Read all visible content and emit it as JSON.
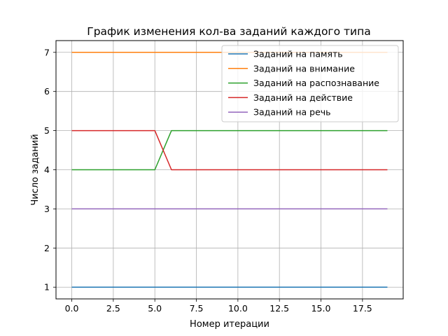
{
  "chart_data": {
    "type": "line",
    "title": "График изменения кол-ва заданий каждого типа",
    "xlabel": "Номер итерации",
    "ylabel": "Число заданий",
    "xlim": [
      -0.95,
      19.95
    ],
    "ylim": [
      0.7,
      7.3
    ],
    "grid": true,
    "legend_position": "top-right",
    "x_ticks": [
      0.0,
      2.5,
      5.0,
      7.5,
      10.0,
      12.5,
      15.0,
      17.5
    ],
    "x_tick_labels": [
      "0.0",
      "2.5",
      "5.0",
      "7.5",
      "10.0",
      "12.5",
      "15.0",
      "17.5"
    ],
    "y_ticks": [
      1,
      2,
      3,
      4,
      5,
      6,
      7
    ],
    "y_tick_labels": [
      "1",
      "2",
      "3",
      "4",
      "5",
      "6",
      "7"
    ],
    "x": [
      0,
      1,
      2,
      3,
      4,
      5,
      6,
      7,
      8,
      9,
      10,
      11,
      12,
      13,
      14,
      15,
      16,
      17,
      18,
      19
    ],
    "series": [
      {
        "name": "Заданий на память",
        "color": "#1f77b4",
        "values": [
          1,
          1,
          1,
          1,
          1,
          1,
          1,
          1,
          1,
          1,
          1,
          1,
          1,
          1,
          1,
          1,
          1,
          1,
          1,
          1
        ]
      },
      {
        "name": "Заданий на внимание",
        "color": "#ff7f0e",
        "values": [
          7,
          7,
          7,
          7,
          7,
          7,
          7,
          7,
          7,
          7,
          7,
          7,
          7,
          7,
          7,
          7,
          7,
          7,
          7,
          7
        ]
      },
      {
        "name": "Заданий на распознавание",
        "color": "#2ca02c",
        "values": [
          4,
          4,
          4,
          4,
          4,
          4,
          5,
          5,
          5,
          5,
          5,
          5,
          5,
          5,
          5,
          5,
          5,
          5,
          5,
          5
        ]
      },
      {
        "name": "Заданий на действие",
        "color": "#d62728",
        "values": [
          5,
          5,
          5,
          5,
          5,
          5,
          4,
          4,
          4,
          4,
          4,
          4,
          4,
          4,
          4,
          4,
          4,
          4,
          4,
          4
        ]
      },
      {
        "name": "Заданий на речь",
        "color": "#9467bd",
        "values": [
          3,
          3,
          3,
          3,
          3,
          3,
          3,
          3,
          3,
          3,
          3,
          3,
          3,
          3,
          3,
          3,
          3,
          3,
          3,
          3
        ]
      }
    ]
  }
}
